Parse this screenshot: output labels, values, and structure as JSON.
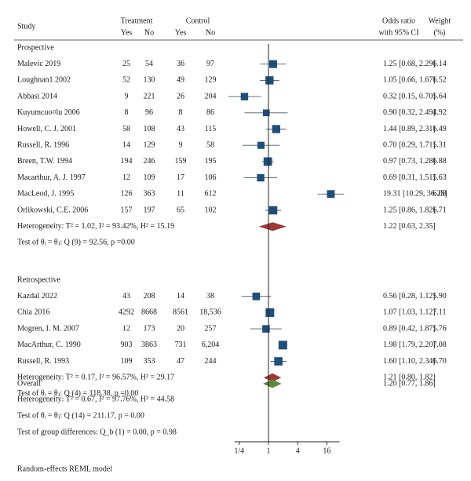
{
  "chart_data": {
    "type": "forest",
    "headers": {
      "study": "Study",
      "treatment": "Treatment",
      "control": "Control",
      "yes": "Yes",
      "no": "No",
      "or_line1": "Odds ratio",
      "or_line2": "with 95% CI",
      "weight_line1": "Weight",
      "weight_line2": "(%)"
    },
    "x_scale": "log2",
    "x_ticks": [
      {
        "value": 0.25,
        "label": "1/4"
      },
      {
        "value": 1,
        "label": "1"
      },
      {
        "value": 4,
        "label": "4"
      },
      {
        "value": 16,
        "label": "16"
      }
    ],
    "groups": [
      {
        "name": "Prospective",
        "studies": [
          {
            "study": "Malevic 2019",
            "t_yes": "25",
            "t_no": "54",
            "c_yes": "36",
            "c_no": "97",
            "or": 1.25,
            "lo": 0.68,
            "hi": 2.29,
            "ci_text": "1.25 [0.68, 2.29]",
            "weight": "6.14"
          },
          {
            "study": "Loughnan1 2002",
            "t_yes": "52",
            "t_no": "130",
            "c_yes": "49",
            "c_no": "129",
            "or": 1.05,
            "lo": 0.66,
            "hi": 1.67,
            "ci_text": "1.05 [0.66, 1.67]",
            "weight": "6.52"
          },
          {
            "study": "Abbasi 2014",
            "t_yes": "9",
            "t_no": "221",
            "c_yes": "26",
            "c_no": "204",
            "or": 0.32,
            "lo": 0.15,
            "hi": 0.7,
            "ci_text": "0.32 [0.15, 0.70]",
            "weight": "5.64"
          },
          {
            "study": "Kuyumcuo¤lu 2006",
            "t_yes": "8",
            "t_no": "96",
            "c_yes": "8",
            "c_no": "86",
            "or": 0.9,
            "lo": 0.32,
            "hi": 2.49,
            "ci_text": "0.90 [0.32, 2.49]",
            "weight": "4.92"
          },
          {
            "study": "Howell, C. J. 2001",
            "t_yes": "58",
            "t_no": "108",
            "c_yes": "43",
            "c_no": "115",
            "or": 1.44,
            "lo": 0.89,
            "hi": 2.31,
            "ci_text": "1.44 [0.89, 2.31]",
            "weight": "6.49"
          },
          {
            "study": "Russell, R. 1996",
            "t_yes": "14",
            "t_no": "129",
            "c_yes": "9",
            "c_no": "58",
            "or": 0.7,
            "lo": 0.29,
            "hi": 1.71,
            "ci_text": "0.70 [0.29, 1.71]",
            "weight": "5.31"
          },
          {
            "study": "Breen, T.W. 1994",
            "t_yes": "194",
            "t_no": "246",
            "c_yes": "159",
            "c_no": "195",
            "or": 0.97,
            "lo": 0.73,
            "hi": 1.28,
            "ci_text": "0.97 [0.73, 1.28]",
            "weight": "6.88"
          },
          {
            "study": "Macarthur, A. J. 1997",
            "t_yes": "12",
            "t_no": "109",
            "c_yes": "17",
            "c_no": "106",
            "or": 0.69,
            "lo": 0.31,
            "hi": 1.51,
            "ci_text": "0.69 [0.31, 1.51]",
            "weight": "5.63"
          },
          {
            "study": "MacLeod, J. 1995",
            "t_yes": "126",
            "t_no": "363",
            "c_yes": "11",
            "c_no": "612",
            "or": 19.31,
            "lo": 10.29,
            "hi": 36.25,
            "ci_text": "19.31 [10.29, 36.25]",
            "weight": "6.08"
          },
          {
            "study": "Orlikowski, C.E. 2006",
            "t_yes": "157",
            "t_no": "197",
            "c_yes": "65",
            "c_no": "102",
            "or": 1.25,
            "lo": 0.86,
            "hi": 1.82,
            "ci_text": "1.25 [0.86, 1.82]",
            "weight": "6.71"
          }
        ],
        "heterogeneity_label": "Heterogeneity:",
        "heterogeneity_values": "= 1.02, I² = 93.42%, H² = 15.19",
        "pooled": {
          "or": 1.22,
          "lo": 0.63,
          "hi": 2.35,
          "ci_text": "1.22 [0.63, 2.35]",
          "color": "#9e3638"
        },
        "test": "Test of θᵢ = θⱼ: Q (9) = 92.56, p =0.00"
      },
      {
        "name": "Retrospective",
        "studies": [
          {
            "study": "Kazdal 2022",
            "t_yes": "43",
            "t_no": "208",
            "c_yes": "14",
            "c_no": "38",
            "or": 0.56,
            "lo": 0.28,
            "hi": 1.12,
            "ci_text": "0.56 [0.28, 1.12]",
            "weight": "5.90"
          },
          {
            "study": "Chia 2016",
            "t_yes": "4292",
            "t_no": "8668",
            "c_yes": "8561",
            "c_no": "18,536",
            "or": 1.07,
            "lo": 1.03,
            "hi": 1.12,
            "ci_text": "1.07 [1.03, 1.12]",
            "weight": "7.11"
          },
          {
            "study": "Mogren, I. M. 2007",
            "t_yes": "12",
            "t_no": "173",
            "c_yes": "20",
            "c_no": "257",
            "or": 0.89,
            "lo": 0.42,
            "hi": 1.87,
            "ci_text": "0.89 [0.42, 1.87]",
            "weight": "5.76"
          },
          {
            "study": "MacArthur, C. 1990",
            "t_yes": "903",
            "t_no": "3863",
            "c_yes": "731",
            "c_no": "6,204",
            "or": 1.98,
            "lo": 1.79,
            "hi": 2.2,
            "ci_text": "1.98 [1.79, 2.20]",
            "weight": "7.08"
          },
          {
            "study": "Russell, R. 1993",
            "t_yes": "109",
            "t_no": "353",
            "c_yes": "47",
            "c_no": "244",
            "or": 1.6,
            "lo": 1.1,
            "hi": 2.34,
            "ci_text": "1.60 [1.10, 2.34]",
            "weight": "6.70"
          }
        ],
        "heterogeneity_label": "Heterogeneity:",
        "heterogeneity_values": "= 0.17, I² = 96.57%, H² = 29.17",
        "pooled": {
          "or": 1.21,
          "lo": 0.8,
          "hi": 1.82,
          "ci_text": "1.21 [0.80, 1.82]",
          "color": "#9e3638"
        },
        "test": "Test of θᵢ = θⱼ: Q (4) = 118.38, p =0.00"
      }
    ],
    "overall": {
      "label": "Overall",
      "or": 1.2,
      "lo": 0.77,
      "hi": 1.86,
      "ci_text": "1.20 [0.77, 1.86]",
      "color": "#5b8a3c",
      "heterogeneity_label": "Heterogeneity:",
      "heterogeneity_values": "= 0.67, I² = 97.76%, H² = 44.58",
      "test": "Test of θᵢ = θⱼ: Q (14) = 211.17, p = 0.00",
      "group_diff": "Test of group differences: Q_b (1) = 0.00, p = 0.98"
    },
    "tau_symbol": "T²",
    "footer": "Random-effects REML model",
    "marker_color": "#1f4e79"
  }
}
